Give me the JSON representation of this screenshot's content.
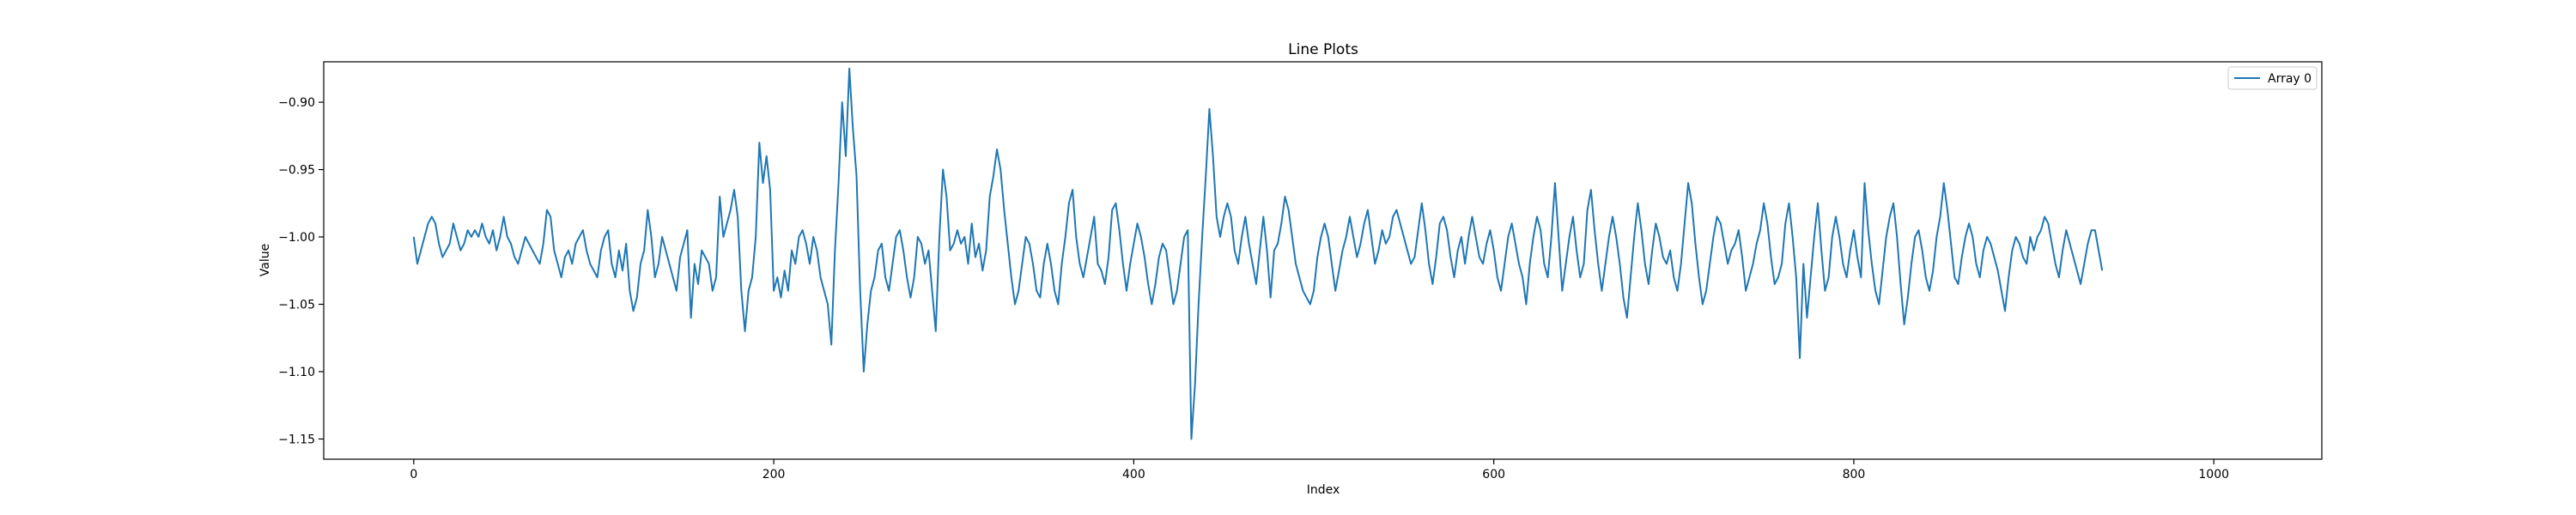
{
  "chart_data": {
    "type": "line",
    "title": "Line Plots",
    "xlabel": "Index",
    "ylabel": "Value",
    "xlim": [
      -50,
      1060
    ],
    "ylim": [
      -1.165,
      -0.87
    ],
    "xticks": [
      0,
      200,
      400,
      600,
      800,
      1000
    ],
    "xtick_labels": [
      "0",
      "200",
      "400",
      "600",
      "800",
      "1000"
    ],
    "yticks": [
      -1.15,
      -1.1,
      -1.05,
      -1.0,
      -0.95,
      -0.9
    ],
    "ytick_labels": [
      "−1.15",
      "−1.10",
      "−1.05",
      "−1.00",
      "−0.95",
      "−0.90"
    ],
    "grid": false,
    "legend_position": "top-right",
    "series": [
      {
        "name": "Array 0",
        "color": "#1f77b4",
        "x_start": 0,
        "x_step": 2,
        "values": [
          -1.0,
          -1.02,
          -1.01,
          -1.0,
          -0.99,
          -0.985,
          -0.99,
          -1.005,
          -1.015,
          -1.01,
          -1.005,
          -0.99,
          -1.0,
          -1.01,
          -1.005,
          -0.995,
          -1.0,
          -0.995,
          -1.0,
          -0.99,
          -1.0,
          -1.005,
          -0.995,
          -1.01,
          -1.0,
          -0.985,
          -1.0,
          -1.005,
          -1.015,
          -1.02,
          -1.01,
          -1.0,
          -1.005,
          -1.01,
          -1.015,
          -1.02,
          -1.005,
          -0.98,
          -0.985,
          -1.01,
          -1.02,
          -1.03,
          -1.015,
          -1.01,
          -1.02,
          -1.005,
          -1.0,
          -0.995,
          -1.01,
          -1.02,
          -1.025,
          -1.03,
          -1.01,
          -1.0,
          -0.995,
          -1.02,
          -1.03,
          -1.01,
          -1.025,
          -1.005,
          -1.04,
          -1.055,
          -1.045,
          -1.02,
          -1.01,
          -0.98,
          -1.0,
          -1.03,
          -1.02,
          -1.0,
          -1.01,
          -1.02,
          -1.03,
          -1.04,
          -1.015,
          -1.005,
          -0.995,
          -1.06,
          -1.02,
          -1.035,
          -1.01,
          -1.015,
          -1.02,
          -1.04,
          -1.03,
          -0.97,
          -1.0,
          -0.99,
          -0.98,
          -0.965,
          -0.985,
          -1.04,
          -1.07,
          -1.04,
          -1.03,
          -1.0,
          -0.93,
          -0.96,
          -0.94,
          -0.965,
          -1.04,
          -1.03,
          -1.045,
          -1.025,
          -1.04,
          -1.01,
          -1.02,
          -1.0,
          -0.995,
          -1.005,
          -1.02,
          -1.0,
          -1.01,
          -1.03,
          -1.04,
          -1.05,
          -1.08,
          -1.01,
          -0.96,
          -0.9,
          -0.94,
          -0.875,
          -0.92,
          -0.955,
          -1.04,
          -1.1,
          -1.065,
          -1.04,
          -1.03,
          -1.01,
          -1.005,
          -1.03,
          -1.04,
          -1.02,
          -1.0,
          -0.995,
          -1.01,
          -1.03,
          -1.045,
          -1.03,
          -1.0,
          -1.005,
          -1.02,
          -1.01,
          -1.04,
          -1.07,
          -1.0,
          -0.95,
          -0.97,
          -1.01,
          -1.005,
          -0.995,
          -1.005,
          -1.0,
          -1.02,
          -0.99,
          -1.015,
          -1.005,
          -1.025,
          -1.01,
          -0.97,
          -0.955,
          -0.935,
          -0.95,
          -0.98,
          -1.005,
          -1.03,
          -1.05,
          -1.04,
          -1.02,
          -1.0,
          -1.005,
          -1.02,
          -1.04,
          -1.045,
          -1.02,
          -1.005,
          -1.02,
          -1.04,
          -1.05,
          -1.02,
          -1.0,
          -0.975,
          -0.965,
          -1.0,
          -1.02,
          -1.03,
          -1.015,
          -1.0,
          -0.985,
          -1.02,
          -1.025,
          -1.035,
          -1.015,
          -0.98,
          -0.975,
          -0.995,
          -1.02,
          -1.04,
          -1.02,
          -1.005,
          -0.99,
          -1.0,
          -1.015,
          -1.035,
          -1.05,
          -1.035,
          -1.015,
          -1.005,
          -1.01,
          -1.03,
          -1.05,
          -1.04,
          -1.02,
          -1.0,
          -0.995,
          -1.15,
          -1.11,
          -1.05,
          -1.0,
          -0.955,
          -0.905,
          -0.94,
          -0.985,
          -1.0,
          -0.985,
          -0.975,
          -0.985,
          -1.01,
          -1.02,
          -1.0,
          -0.985,
          -1.005,
          -1.02,
          -1.035,
          -1.01,
          -0.985,
          -1.01,
          -1.045,
          -1.01,
          -1.005,
          -0.99,
          -0.97,
          -0.98,
          -1.0,
          -1.02,
          -1.03,
          -1.04,
          -1.045,
          -1.05,
          -1.04,
          -1.015,
          -1.0,
          -0.99,
          -1.0,
          -1.02,
          -1.04,
          -1.025,
          -1.01,
          -1.0,
          -0.985,
          -1.0,
          -1.015,
          -1.005,
          -0.99,
          -0.98,
          -1.0,
          -1.02,
          -1.01,
          -0.995,
          -1.005,
          -1.0,
          -0.985,
          -0.98,
          -0.99,
          -1.0,
          -1.01,
          -1.02,
          -1.015,
          -0.995,
          -0.975,
          -0.995,
          -1.02,
          -1.035,
          -1.015,
          -0.99,
          -0.985,
          -0.995,
          -1.015,
          -1.03,
          -1.01,
          -1.0,
          -1.02,
          -1.0,
          -0.985,
          -1.0,
          -1.015,
          -1.02,
          -1.005,
          -0.995,
          -1.01,
          -1.03,
          -1.04,
          -1.02,
          -1.0,
          -0.99,
          -1.005,
          -1.02,
          -1.03,
          -1.05,
          -1.02,
          -1.0,
          -0.985,
          -0.995,
          -1.02,
          -1.03,
          -1.0,
          -0.96,
          -1.0,
          -1.04,
          -1.02,
          -1.0,
          -0.985,
          -1.01,
          -1.03,
          -1.02,
          -0.98,
          -0.965,
          -0.995,
          -1.02,
          -1.04,
          -1.02,
          -1.0,
          -0.985,
          -1.0,
          -1.02,
          -1.045,
          -1.06,
          -1.03,
          -1.0,
          -0.975,
          -0.995,
          -1.02,
          -1.035,
          -1.01,
          -0.99,
          -1.0,
          -1.015,
          -1.02,
          -1.01,
          -1.03,
          -1.04,
          -1.02,
          -0.99,
          -0.96,
          -0.975,
          -1.005,
          -1.03,
          -1.05,
          -1.04,
          -1.02,
          -1.0,
          -0.985,
          -0.99,
          -1.005,
          -1.02,
          -1.01,
          -1.005,
          -0.995,
          -1.015,
          -1.04,
          -1.03,
          -1.02,
          -1.005,
          -0.995,
          -0.975,
          -0.99,
          -1.015,
          -1.035,
          -1.03,
          -1.02,
          -0.99,
          -0.975,
          -1.0,
          -1.03,
          -1.09,
          -1.02,
          -1.06,
          -1.03,
          -1.0,
          -0.975,
          -1.01,
          -1.04,
          -1.03,
          -1.0,
          -0.985,
          -1.0,
          -1.02,
          -1.03,
          -1.01,
          -0.995,
          -1.015,
          -1.03,
          -0.96,
          -0.995,
          -1.02,
          -1.04,
          -1.05,
          -1.025,
          -1.0,
          -0.985,
          -0.975,
          -1.0,
          -1.035,
          -1.065,
          -1.045,
          -1.02,
          -1.0,
          -0.995,
          -1.01,
          -1.03,
          -1.04,
          -1.025,
          -1.0,
          -0.985,
          -0.96,
          -0.98,
          -1.005,
          -1.03,
          -1.035,
          -1.015,
          -1.0,
          -0.99,
          -1.0,
          -1.02,
          -1.03,
          -1.01,
          -1.0,
          -1.005,
          -1.015,
          -1.025,
          -1.04,
          -1.055,
          -1.03,
          -1.01,
          -1.0,
          -1.005,
          -1.015,
          -1.02,
          -1.0,
          -1.01,
          -1.0,
          -0.995,
          -0.985,
          -0.99,
          -1.005,
          -1.02,
          -1.03,
          -1.01,
          -0.995,
          -1.005,
          -1.015,
          -1.025,
          -1.035,
          -1.02,
          -1.005,
          -0.995,
          -0.995,
          -1.01,
          -1.025
        ]
      }
    ]
  }
}
